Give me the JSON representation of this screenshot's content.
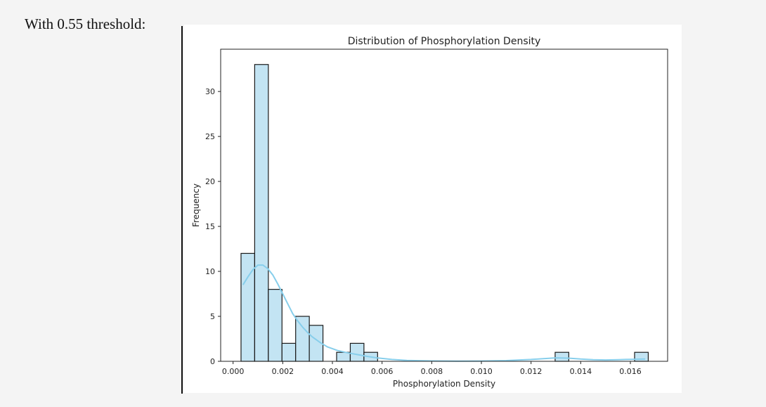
{
  "caption": "With 0.55 threshold:",
  "chart_data": {
    "type": "bar",
    "title": "Distribution of Phosphorylation Density",
    "xlabel": "Phosphorylation Density",
    "ylabel": "Frequency",
    "xlim": [
      -0.0005,
      0.0175
    ],
    "ylim": [
      0,
      34.7
    ],
    "xticks": [
      0.0,
      0.002,
      0.004,
      0.006,
      0.008,
      0.01,
      0.012,
      0.014,
      0.016
    ],
    "xtick_labels": [
      "0.000",
      "0.002",
      "0.004",
      "0.006",
      "0.008",
      "0.010",
      "0.012",
      "0.014",
      "0.016"
    ],
    "yticks": [
      0,
      5,
      10,
      15,
      20,
      25,
      30
    ],
    "ytick_labels": [
      "0",
      "5",
      "10",
      "15",
      "20",
      "25",
      "30"
    ],
    "bins": [
      {
        "x0": 0.00032,
        "x1": 0.00087,
        "count": 12
      },
      {
        "x0": 0.00087,
        "x1": 0.00142,
        "count": 33
      },
      {
        "x0": 0.00142,
        "x1": 0.00197,
        "count": 8
      },
      {
        "x0": 0.00197,
        "x1": 0.00252,
        "count": 2
      },
      {
        "x0": 0.00252,
        "x1": 0.00307,
        "count": 5
      },
      {
        "x0": 0.00307,
        "x1": 0.00362,
        "count": 4
      },
      {
        "x0": 0.00417,
        "x1": 0.00472,
        "count": 1
      },
      {
        "x0": 0.00472,
        "x1": 0.00527,
        "count": 2
      },
      {
        "x0": 0.00527,
        "x1": 0.00582,
        "count": 1
      },
      {
        "x0": 0.01297,
        "x1": 0.01352,
        "count": 1
      },
      {
        "x0": 0.01617,
        "x1": 0.01672,
        "count": 1
      }
    ],
    "kde_curve": {
      "x": [
        0.0004,
        0.0006,
        0.0008,
        0.001,
        0.0012,
        0.0014,
        0.0016,
        0.0018,
        0.002,
        0.0022,
        0.0024,
        0.0026,
        0.0028,
        0.003,
        0.0032,
        0.0035,
        0.0038,
        0.0042,
        0.0046,
        0.005,
        0.0054,
        0.0058,
        0.0064,
        0.007,
        0.008,
        0.009,
        0.01,
        0.011,
        0.012,
        0.0125,
        0.013,
        0.0135,
        0.014,
        0.0145,
        0.015,
        0.0155,
        0.016,
        0.0166
      ],
      "y": [
        8.5,
        9.4,
        10.2,
        10.7,
        10.7,
        10.3,
        9.6,
        8.6,
        7.5,
        6.4,
        5.3,
        4.5,
        3.8,
        3.2,
        2.7,
        2.1,
        1.6,
        1.2,
        0.95,
        0.75,
        0.55,
        0.38,
        0.2,
        0.1,
        0.04,
        0.02,
        0.03,
        0.08,
        0.2,
        0.3,
        0.38,
        0.35,
        0.25,
        0.18,
        0.15,
        0.18,
        0.22,
        0.25
      ]
    },
    "bar_color": "#c3e4f3",
    "bar_edge_color": "#1a1a1a",
    "kde_color": "#87ceeb",
    "grid": false,
    "legend": "none"
  }
}
